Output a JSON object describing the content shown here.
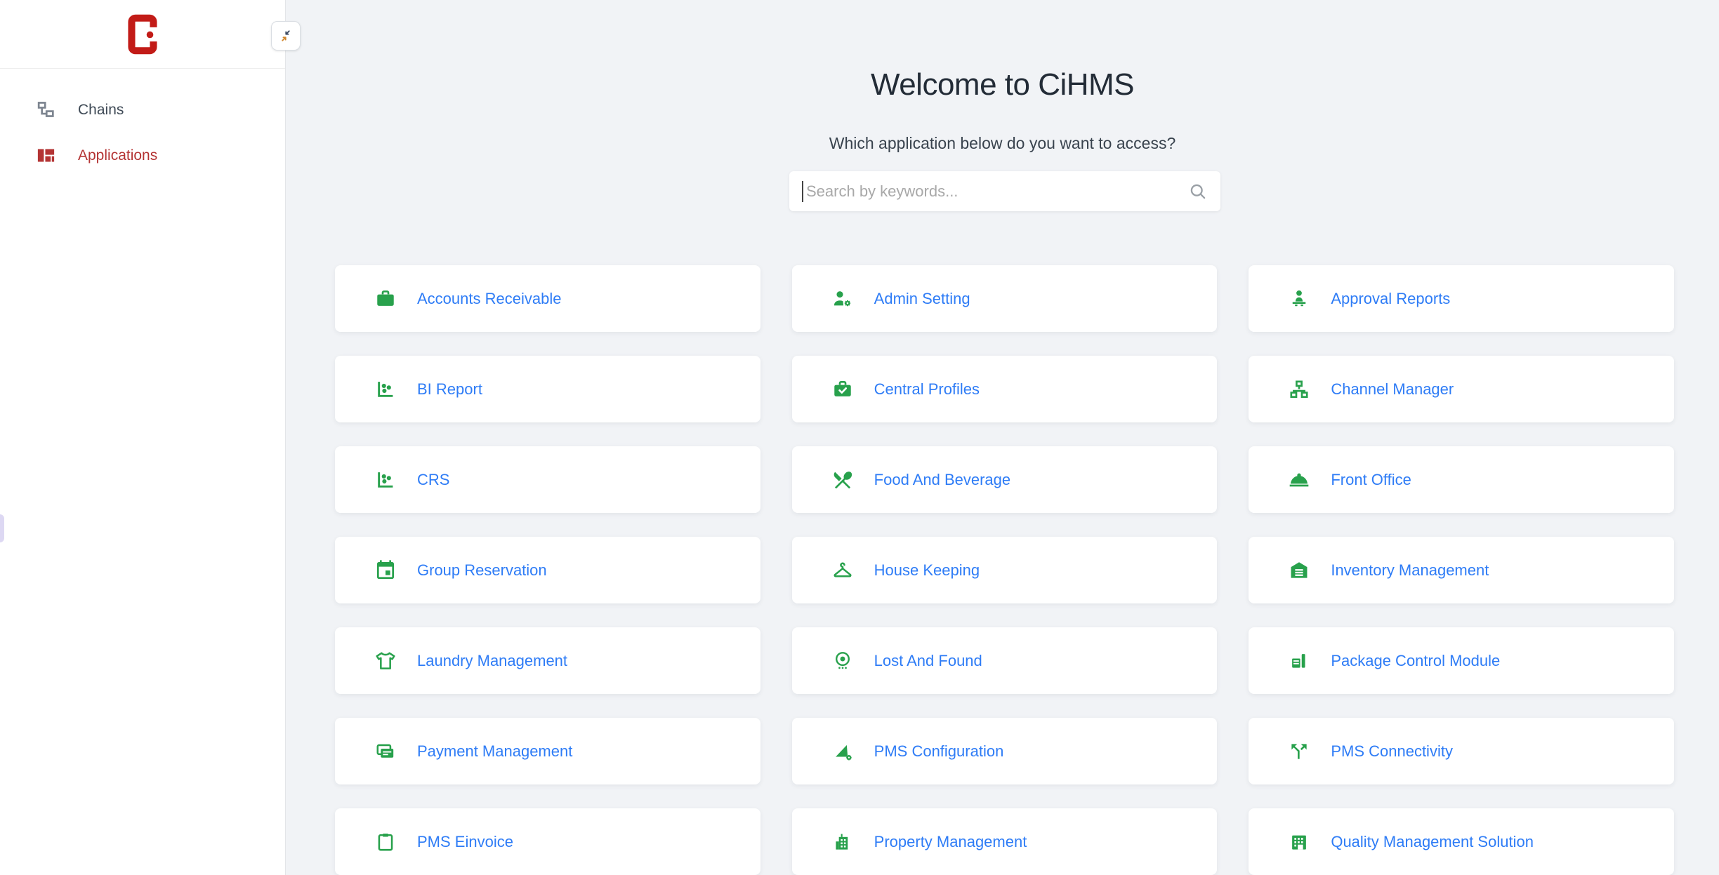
{
  "sidebar": {
    "logo_icon": "cihms-logo-icon",
    "collapse_button_icon": "collapse-arrows-icon",
    "items": [
      {
        "label": "Chains",
        "icon": "chains",
        "active": false
      },
      {
        "label": "Applications",
        "icon": "applications",
        "active": true
      }
    ]
  },
  "main": {
    "title": "Welcome to CiHMS",
    "subtitle": "Which application below do you want to access?",
    "search": {
      "placeholder": "Search by keywords...",
      "value": "",
      "icon": "search"
    },
    "apps": [
      {
        "label": "Accounts Receivable",
        "icon": "briefcase"
      },
      {
        "label": "Admin Setting",
        "icon": "person-gear"
      },
      {
        "label": "Approval Reports",
        "icon": "person-desk"
      },
      {
        "label": "BI Report",
        "icon": "scatter-chart"
      },
      {
        "label": "Central Profiles",
        "icon": "briefcase-check"
      },
      {
        "label": "Channel Manager",
        "icon": "sitemap"
      },
      {
        "label": "CRS",
        "icon": "scatter-chart"
      },
      {
        "label": "Food And Beverage",
        "icon": "crossed-utensils"
      },
      {
        "label": "Front Office",
        "icon": "service-bell"
      },
      {
        "label": "Group Reservation",
        "icon": "calendar"
      },
      {
        "label": "House Keeping",
        "icon": "hanger"
      },
      {
        "label": "Inventory Management",
        "icon": "warehouse"
      },
      {
        "label": "Laundry Management",
        "icon": "tshirt"
      },
      {
        "label": "Lost And Found",
        "icon": "eye-pin"
      },
      {
        "label": "Package Control Module",
        "icon": "package-board"
      },
      {
        "label": "Payment Management",
        "icon": "credit-card"
      },
      {
        "label": "PMS Configuration",
        "icon": "flag-gear"
      },
      {
        "label": "PMS Connectivity",
        "icon": "split-arrows"
      },
      {
        "label": "PMS Einvoice",
        "icon": "clipboard"
      },
      {
        "label": "Property Management",
        "icon": "building"
      },
      {
        "label": "Quality Management Solution",
        "icon": "office-grid"
      }
    ]
  },
  "colors": {
    "app_icon_green": "#28a14c",
    "app_label_blue": "#2e7cf6",
    "brand_red": "#c21b17",
    "active_menu_red": "#b43434",
    "background": "#f1f3f6"
  }
}
